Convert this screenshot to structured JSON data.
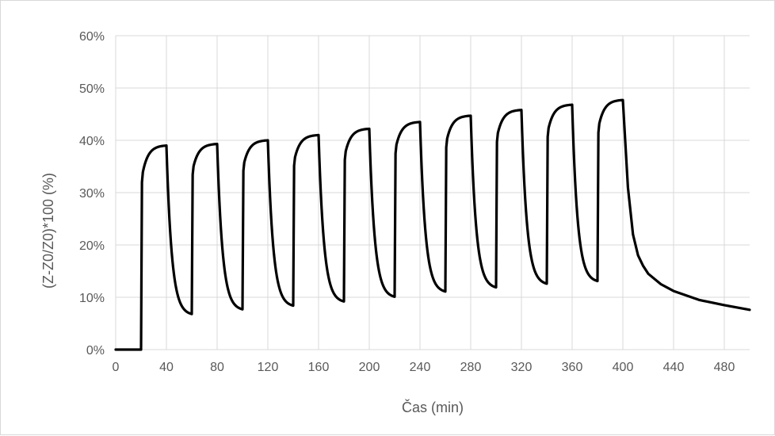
{
  "chart_data": {
    "type": "line",
    "title": "",
    "xlabel": "Čas (min)",
    "ylabel": "(Z-Z0/Z0)*100 (%)",
    "xlim": [
      0,
      500
    ],
    "ylim": [
      0,
      0.6
    ],
    "x_ticks": [
      0,
      40,
      80,
      120,
      160,
      200,
      240,
      280,
      320,
      360,
      400,
      440,
      480
    ],
    "x_tick_labels": [
      "0",
      "40",
      "80",
      "120",
      "160",
      "200",
      "240",
      "280",
      "320",
      "360",
      "400",
      "440",
      "480"
    ],
    "y_ticks": [
      0,
      0.1,
      0.2,
      0.3,
      0.4,
      0.5,
      0.6
    ],
    "y_tick_labels": [
      "0%",
      "10%",
      "20%",
      "30%",
      "40%",
      "50%",
      "60%"
    ],
    "grid": "vertical and horizontal",
    "legend": "none",
    "line_color": "#000000",
    "grid_color": "#d9d9d9",
    "baseline": {
      "x": [
        0,
        20
      ],
      "y": [
        0.0,
        0.0
      ]
    },
    "cycles": [
      {
        "on": 20,
        "off": 40,
        "peak": 0.39,
        "trough": 0.068
      },
      {
        "on": 60,
        "off": 80,
        "peak": 0.393,
        "trough": 0.077
      },
      {
        "on": 100,
        "off": 120,
        "peak": 0.4,
        "trough": 0.084
      },
      {
        "on": 140,
        "off": 160,
        "peak": 0.41,
        "trough": 0.092
      },
      {
        "on": 180,
        "off": 200,
        "peak": 0.422,
        "trough": 0.101
      },
      {
        "on": 220,
        "off": 240,
        "peak": 0.435,
        "trough": 0.111
      },
      {
        "on": 260,
        "off": 280,
        "peak": 0.447,
        "trough": 0.119
      },
      {
        "on": 300,
        "off": 320,
        "peak": 0.458,
        "trough": 0.126
      },
      {
        "on": 340,
        "off": 360,
        "peak": 0.468,
        "trough": 0.131
      },
      {
        "on": 380,
        "off": 400,
        "peak": 0.477,
        "trough": null
      }
    ],
    "final_decay": {
      "x": [
        400,
        404,
        408,
        412,
        416,
        420,
        430,
        440,
        460,
        480,
        500
      ],
      "y": [
        0.477,
        0.31,
        0.22,
        0.18,
        0.16,
        0.145,
        0.125,
        0.112,
        0.095,
        0.085,
        0.076
      ]
    }
  }
}
